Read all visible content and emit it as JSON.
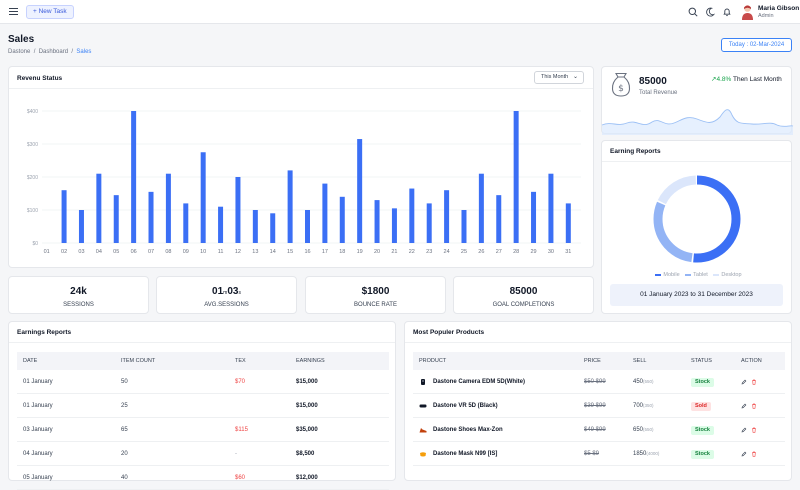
{
  "header": {
    "new_task_label": "+ New Task",
    "user_name": "Maria Gibson",
    "user_role": "Admin"
  },
  "page": {
    "title": "Sales",
    "breadcrumb": [
      "Dastone",
      "Dashboard",
      "Sales"
    ],
    "date_button": "Today : 02-Mar-2024"
  },
  "revenue": {
    "title": "Revenu Status",
    "period_select": "This Month"
  },
  "chart_data": {
    "type": "bar",
    "categories": [
      "01",
      "02",
      "03",
      "04",
      "05",
      "06",
      "07",
      "08",
      "09",
      "10",
      "11",
      "12",
      "13",
      "14",
      "15",
      "16",
      "17",
      "18",
      "19",
      "20",
      "21",
      "22",
      "23",
      "24",
      "25",
      "26",
      "27",
      "28",
      "29",
      "30",
      "31"
    ],
    "values": [
      0,
      160,
      100,
      210,
      145,
      400,
      155,
      210,
      120,
      275,
      110,
      200,
      100,
      90,
      220,
      100,
      180,
      140,
      315,
      130,
      105,
      165,
      120,
      160,
      100,
      210,
      145,
      400,
      155,
      210,
      120
    ],
    "ytick_labels": [
      "$0",
      "$100",
      "$200",
      "$300",
      "$400"
    ],
    "ylim": [
      0,
      400
    ],
    "grid": true,
    "color": "#3b6ff5"
  },
  "total_revenue": {
    "value": "85000",
    "label": "Total Revenue",
    "trend_pct": "4.8%",
    "trend_text": "Then Last Month"
  },
  "earning_reports_chart": {
    "title": "Earning Reports",
    "legend": [
      "Mobile",
      "Tablet",
      "Desktop"
    ],
    "colors": [
      "#3b6ff5",
      "#93b4f5",
      "#dbe6fb"
    ],
    "shares": [
      0.52,
      0.3,
      0.18
    ],
    "period": "01 January 2023 to 31 December 2023"
  },
  "stats": [
    {
      "value": "24k",
      "label": "SESSIONS"
    },
    {
      "value_main_1": "01",
      "value_unit_1": "m",
      "value_main_2": "03",
      "value_unit_2": "s",
      "label": "AVG.SESSIONS"
    },
    {
      "value": "$1800",
      "label": "BOUNCE RATE"
    },
    {
      "value": "85000",
      "label": "GOAL COMPLETIONS"
    }
  ],
  "earnings_table": {
    "title": "Earnings Reports",
    "columns": [
      "DATE",
      "ITEM COUNT",
      "TEX",
      "EARNINGS"
    ],
    "rows": [
      {
        "date": "01 January",
        "count": "50",
        "tex": "$70",
        "earn": "$15,000"
      },
      {
        "date": "01 January",
        "count": "25",
        "tex": "",
        "earn": "$15,000"
      },
      {
        "date": "03 January",
        "count": "65",
        "tex": "$115",
        "earn": "$35,000"
      },
      {
        "date": "04 January",
        "count": "20",
        "tex": "-",
        "earn": "$8,500"
      },
      {
        "date": "05 January",
        "count": "40",
        "tex": "$60",
        "earn": "$12,000"
      }
    ]
  },
  "products_table": {
    "title": "Most Populer Products",
    "columns": [
      "PRODUCT",
      "PRICE",
      "SELL",
      "STATUS",
      "ACTION"
    ],
    "rows": [
      {
        "name": "Dastone Camera EDM 5D(White)",
        "price": "$50 $99",
        "sell": "450",
        "unit": "(550)",
        "status": "Stock"
      },
      {
        "name": "Dastone VR 5D (Black)",
        "price": "$39 $99",
        "sell": "700",
        "unit": "(350)",
        "status": "Sold"
      },
      {
        "name": "Dastone Shoes Max-Zon",
        "price": "$49 $99",
        "sell": "650",
        "unit": "(550)",
        "status": "Stock"
      },
      {
        "name": "Dastone Mask N99 [IS]",
        "price": "$5 $9",
        "sell": "1850",
        "unit": "(4000)",
        "status": "Stock"
      }
    ]
  }
}
